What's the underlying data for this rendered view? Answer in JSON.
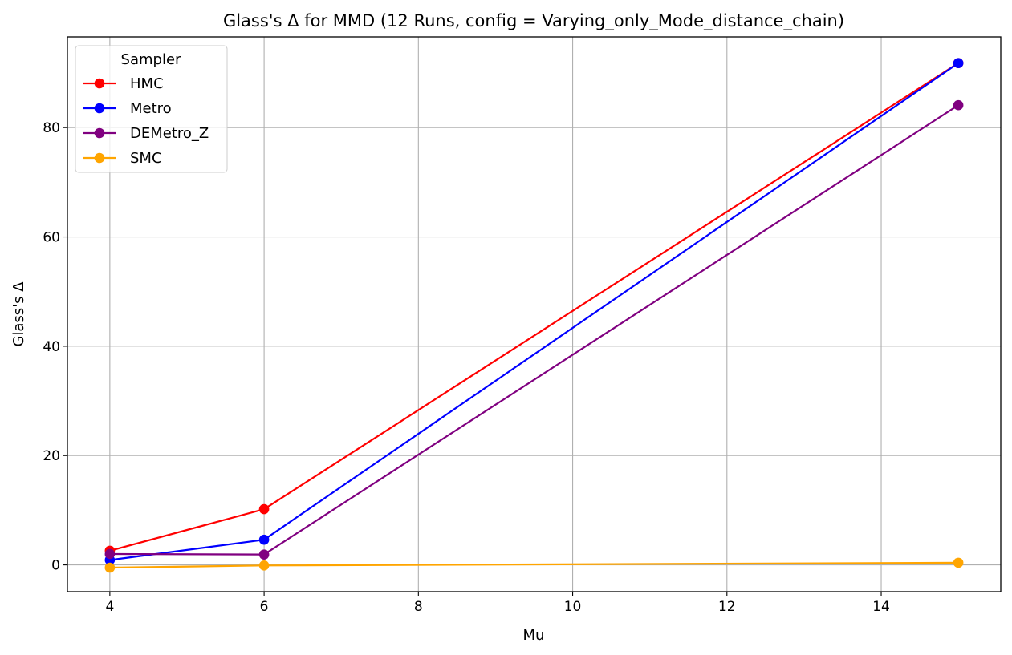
{
  "chart_data": {
    "type": "line",
    "title": "Glass's Δ for MMD (12 Runs, config = Varying_only_Mode_distance_chain)",
    "xlabel": "Mu",
    "ylabel": "Glass's Δ",
    "x": [
      4,
      6,
      15
    ],
    "xlim": [
      3.45,
      15.55
    ],
    "ylim": [
      -4.9,
      96.6
    ],
    "xticks": [
      4,
      6,
      8,
      10,
      12,
      14
    ],
    "yticks": [
      0,
      20,
      40,
      60,
      80
    ],
    "grid": true,
    "legend": {
      "title": "Sampler",
      "placement": "top-left"
    },
    "series": [
      {
        "name": "HMC",
        "color": "#ff0000",
        "values": [
          2.6,
          10.2,
          91.8
        ]
      },
      {
        "name": "Metro",
        "color": "#0000ff",
        "values": [
          0.9,
          4.6,
          91.8
        ]
      },
      {
        "name": "DEMetro_Z",
        "color": "#800080",
        "values": [
          2.0,
          1.9,
          84.1
        ]
      },
      {
        "name": "SMC",
        "color": "#ffa500",
        "values": [
          -0.5,
          -0.1,
          0.4
        ]
      }
    ]
  }
}
